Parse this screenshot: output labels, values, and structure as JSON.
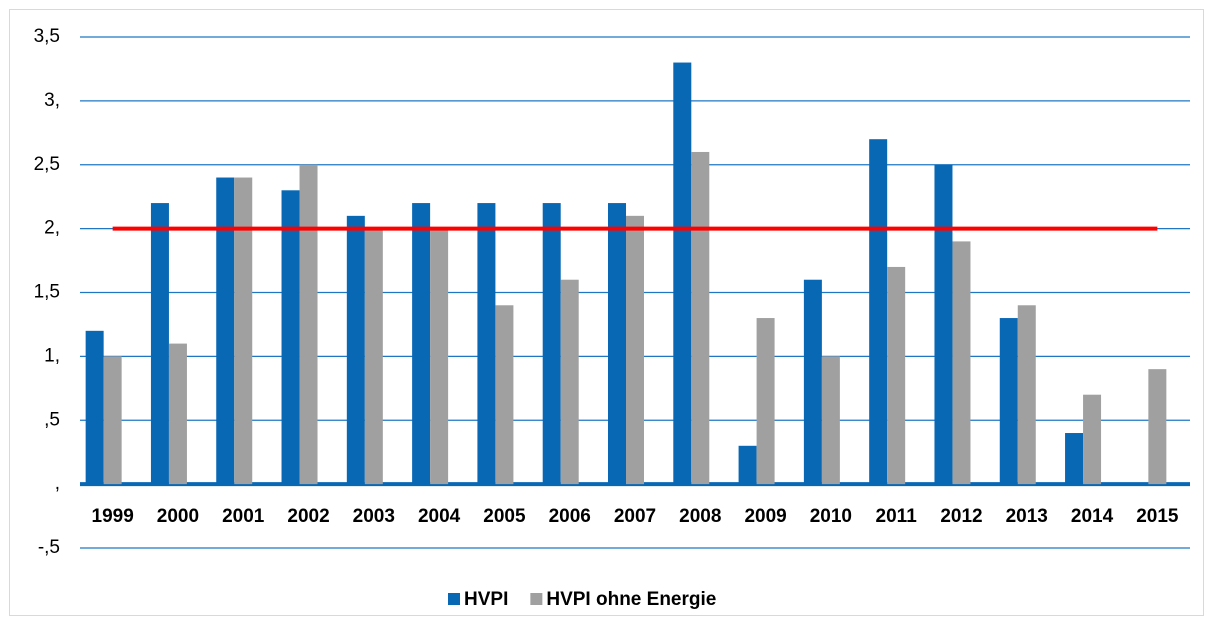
{
  "chart_data": {
    "type": "bar",
    "categories": [
      "1999",
      "2000",
      "2001",
      "2002",
      "2003",
      "2004",
      "2005",
      "2006",
      "2007",
      "2008",
      "2009",
      "2010",
      "2011",
      "2012",
      "2013",
      "2014",
      "2015"
    ],
    "series": [
      {
        "name": "HVPI",
        "color": "#0868b4",
        "values": [
          1.2,
          2.2,
          2.4,
          2.3,
          2.1,
          2.2,
          2.2,
          2.2,
          2.2,
          3.3,
          0.3,
          1.6,
          2.7,
          2.5,
          1.3,
          0.4,
          0
        ]
      },
      {
        "name": "HVPI ohne Energie",
        "color": "#a0a0a0",
        "values": [
          1.0,
          1.1,
          2.4,
          2.5,
          2.0,
          2.0,
          1.4,
          1.6,
          2.1,
          2.6,
          1.3,
          1.0,
          1.7,
          1.9,
          1.4,
          0.7,
          0.9
        ]
      }
    ],
    "ylim": [
      -0.5,
      3.5
    ],
    "yticks": [
      {
        "value": -0.5,
        "label": "-,5"
      },
      {
        "value": 0,
        "label": ","
      },
      {
        "value": 0.5,
        "label": ",5"
      },
      {
        "value": 1,
        "label": "1,"
      },
      {
        "value": 1.5,
        "label": "1,5"
      },
      {
        "value": 2,
        "label": "2,"
      },
      {
        "value": 2.5,
        "label": "2,5"
      },
      {
        "value": 3,
        "label": "3,"
      },
      {
        "value": 3.5,
        "label": "3,5"
      }
    ],
    "grid": true,
    "reference_line": {
      "value": 2,
      "color": "#ff0000"
    },
    "legend": "bottom"
  }
}
